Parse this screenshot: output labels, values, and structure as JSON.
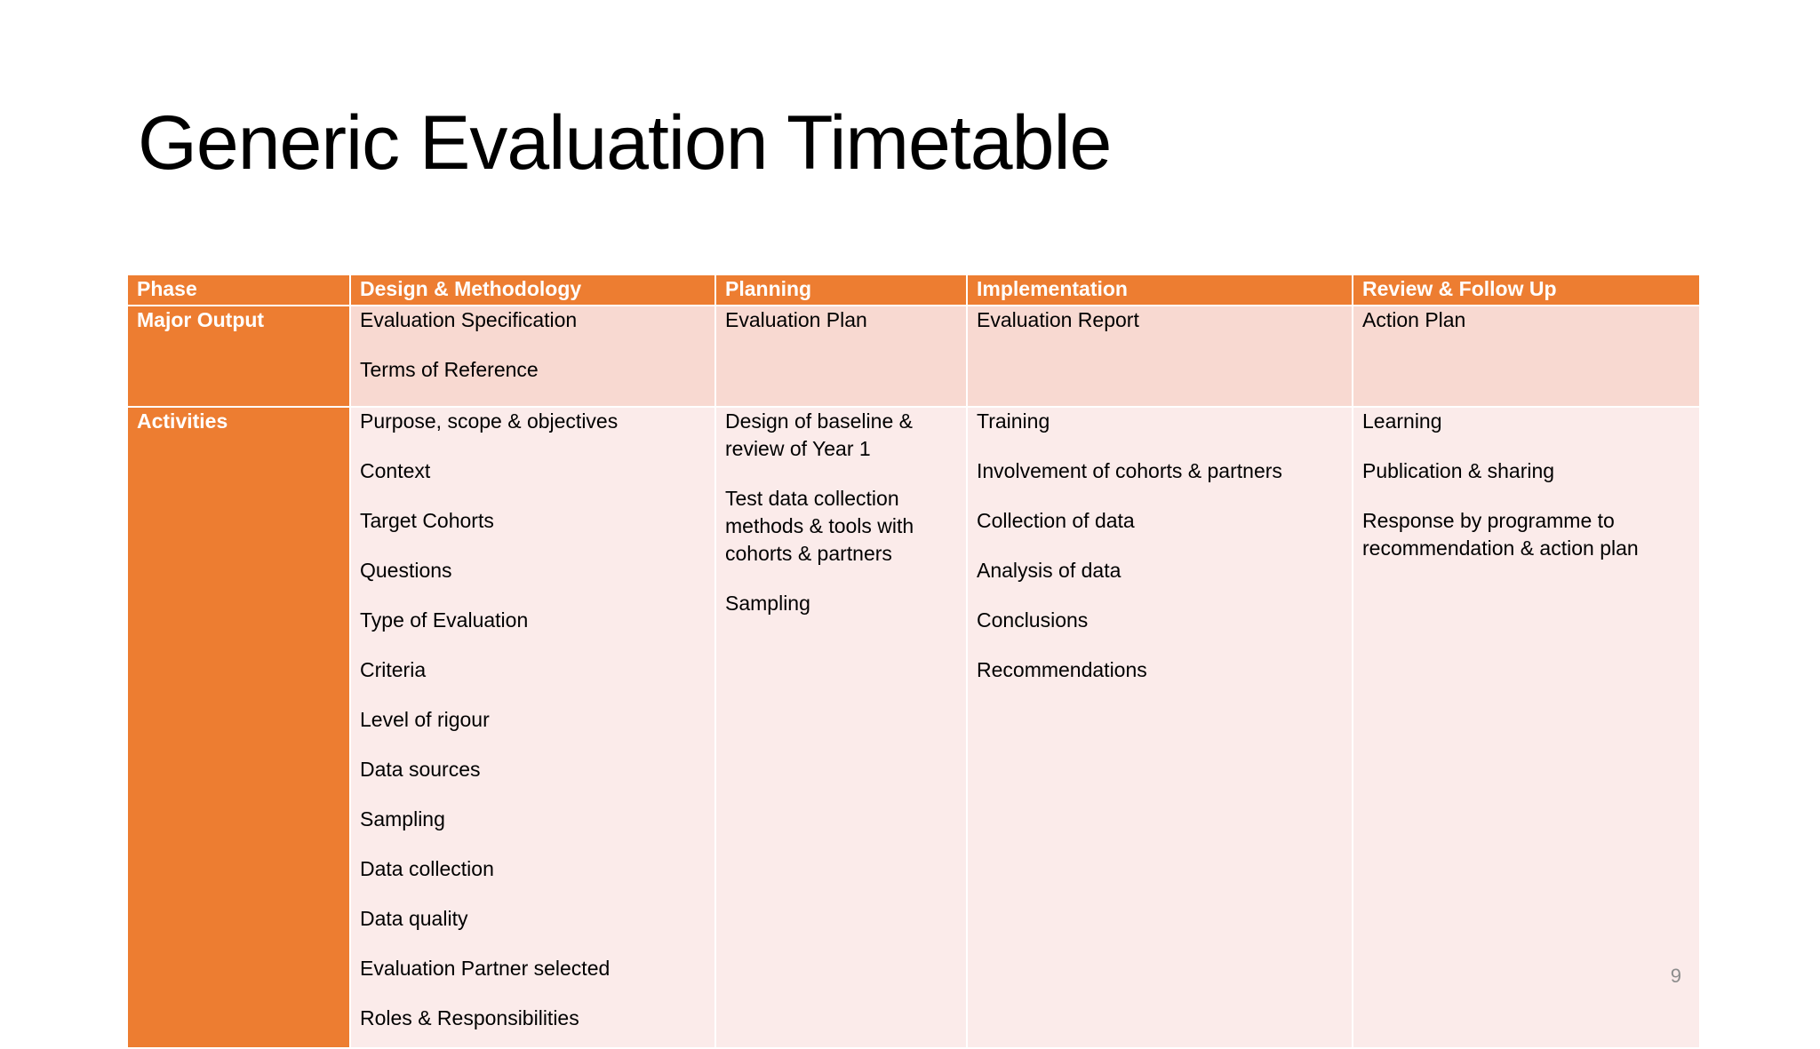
{
  "slide": {
    "title": "Generic Evaluation Timetable",
    "page_number": "9"
  },
  "colors": {
    "accent": "#ed7d31",
    "output_row_fill": "#f8d9d1",
    "activities_row_fill": "#fbebea"
  },
  "table": {
    "headers": [
      "Phase",
      "Design & Methodology",
      "Planning",
      "Implementation",
      "Review & Follow Up"
    ],
    "rows": [
      {
        "label": "Major Output",
        "cells": [
          [
            "Evaluation Specification",
            "Terms of Reference"
          ],
          [
            "Evaluation Plan"
          ],
          [
            "Evaluation Report"
          ],
          [
            "Action Plan"
          ]
        ]
      },
      {
        "label": "Activities",
        "cells": [
          [
            "Purpose, scope & objectives",
            "Context",
            "Target Cohorts",
            "Questions",
            "Type of Evaluation",
            "Criteria",
            "Level of rigour",
            "Data sources",
            "Sampling",
            "Data collection",
            "Data quality",
            "Evaluation Partner selected",
            "Roles & Responsibilities"
          ],
          [
            "Design of baseline & review of Year 1",
            "Test data collection methods & tools with cohorts & partners",
            "Sampling"
          ],
          [
            "Training",
            "Involvement of cohorts & partners",
            "Collection of data",
            "Analysis of data",
            "Conclusions",
            "Recommendations"
          ],
          [
            "Learning",
            "Publication & sharing",
            "Response by programme to recommendation & action plan"
          ]
        ]
      }
    ]
  }
}
